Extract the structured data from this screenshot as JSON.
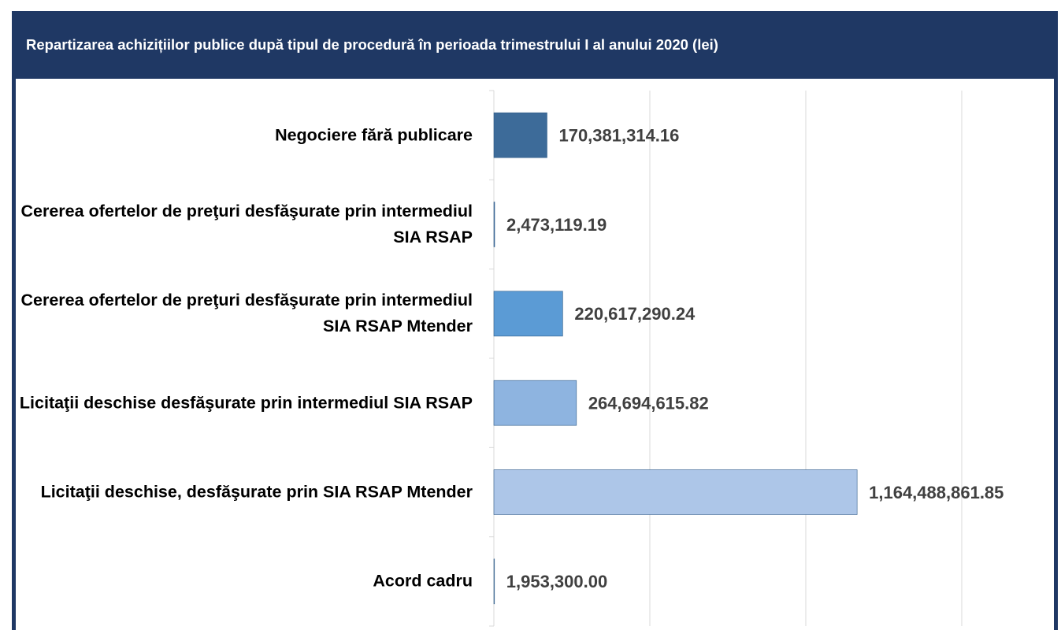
{
  "chart_data": {
    "type": "hbar",
    "title": "Repartizarea achizițiilor publice după tipul de procedură în perioada trimestrului I al anului 2020 (lei)",
    "categories": [
      "Negociere fără publicare",
      "Cererea ofertelor de preţuri desfăşurate prin intermediul SIA RSAP",
      "Cererea ofertelor de preţuri desfăşurate prin intermediul SIA RSAP Mtender",
      "Licitaţii deschise desfăşurate prin intermediul SIA RSAP",
      "Licitaţii deschise, desfăşurate prin SIA RSAP Mtender",
      "Acord cadru"
    ],
    "values": [
      170381314.16,
      2473119.19,
      220617290.24,
      264694615.82,
      1164488861.85,
      1953300.0
    ],
    "value_labels": [
      "170,381,314.16",
      "2,473,119.19",
      "220,617,290.24",
      "264,694,615.82",
      "1,164,488,861.85",
      "1,953,300.00"
    ],
    "colors": [
      "#3d6b99",
      "#4a7ab0",
      "#5b9bd5",
      "#8eb4e0",
      "#adc6e8",
      "#b8cde8"
    ],
    "xlim": [
      0,
      1750000000
    ],
    "xticks": [
      0,
      500000000,
      1000000000,
      1500000000
    ],
    "grid": true
  }
}
